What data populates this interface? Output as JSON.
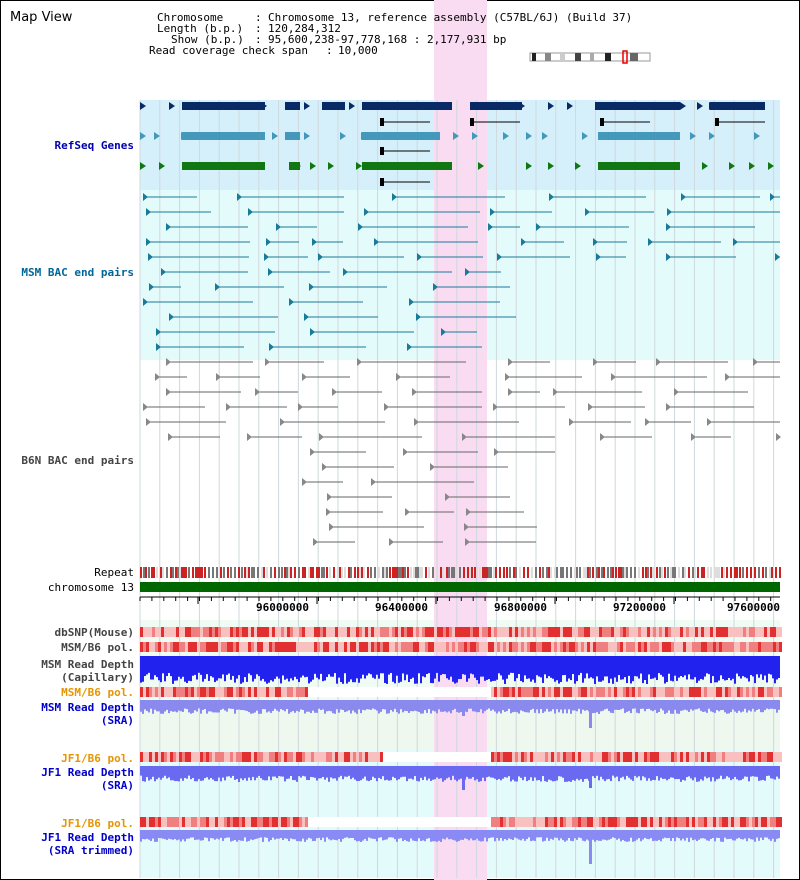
{
  "panel": {
    "title": "Map View"
  },
  "header": {
    "chromosome_label": "Chromosome",
    "chromosome_value": "Chromosome 13, reference assembly (C57BL/6J) (Build 37)",
    "length_label": "Length (b.p.)",
    "length_value": "120,284,312",
    "show_label": "Show (b.p.)",
    "show_value": "95,600,238-97,778,168 : 2,177,931 bp",
    "span_label": "Read coverage check span",
    "span_value": "10,000"
  },
  "tracks": {
    "refseq": "RefSeq Genes",
    "msm_bac": "MSM BAC end pairs",
    "b6n_bac": "B6N BAC end pairs",
    "repeat": "Repeat",
    "chromosome": "chromosome 13",
    "dbsnp": "dbSNP(Mouse)",
    "msm_b6_pol_1": "MSM/B6 pol.",
    "msm_depth_cap_1": "MSM Read Depth",
    "msm_depth_cap_2": "(Capillary)",
    "msm_b6_pol_2": "MSM/B6 pol.",
    "msm_depth_sra_1": "MSM Read Depth",
    "msm_depth_sra_2": "(SRA)",
    "jf1_b6_pol_1": "JF1/B6 pol.",
    "jf1_depth_sra_1": "JF1 Read Depth",
    "jf1_depth_sra_2": "(SRA)",
    "jf1_b6_pol_2": "JF1/B6 pol.",
    "jf1_depth_trim_1": "JF1 Read Depth",
    "jf1_depth_trim_2": "(SRA trimmed)"
  },
  "ruler": {
    "ticks": [
      "96000000",
      "96400000",
      "96800000",
      "97200000",
      "97600000"
    ]
  },
  "colors": {
    "refseq_label": "#0000aa",
    "msm_label": "#006699",
    "b6n_label": "#444444",
    "pol_label": "#e69500",
    "depth_label": "#0000cc",
    "highlight": "#f9dcf2",
    "chromosome_bar": "#006600"
  }
}
